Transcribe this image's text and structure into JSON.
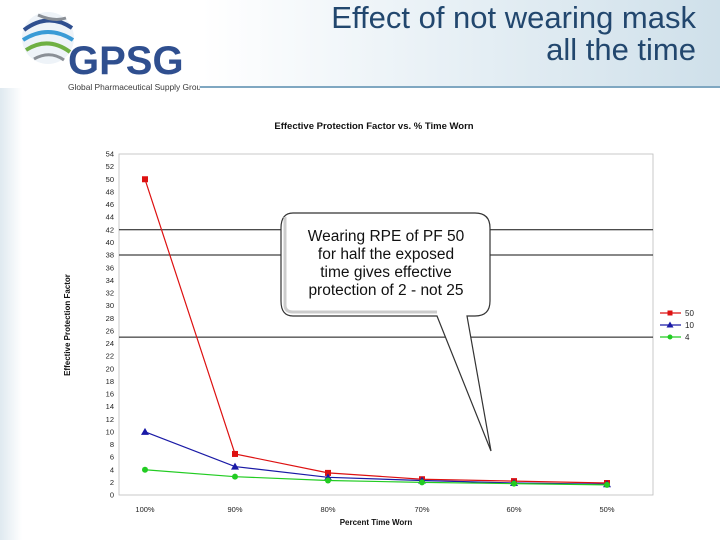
{
  "slide": {
    "title_line1": "Effect of not wearing mask",
    "title_line2": "all the time"
  },
  "logo": {
    "text": "GPSG",
    "subtitle": "Global Pharmaceutical Supply Group",
    "colors": [
      "#2f4f8f",
      "#6fb043",
      "#3a9bd6",
      "#8a8f96"
    ]
  },
  "callout": {
    "lines": [
      "Wearing RPE of PF 50",
      "for half the exposed",
      "time gives effective",
      "protection of 2 - not 25"
    ]
  },
  "chart_data": {
    "type": "line",
    "title": "Effective Protection Factor vs. % Time Worn",
    "xlabel": "Percent Time Worn",
    "ylabel": "Effective Protection Factor",
    "categories": [
      "100%",
      "90%",
      "80%",
      "70%",
      "60%",
      "50%"
    ],
    "ylim": [
      0,
      54
    ],
    "yticks": [
      0,
      2,
      4,
      6,
      8,
      10,
      12,
      14,
      16,
      18,
      20,
      22,
      24,
      26,
      28,
      30,
      32,
      34,
      36,
      38,
      40,
      42,
      44,
      46,
      48,
      50,
      52,
      54
    ],
    "reference_lines": [
      25,
      38,
      42
    ],
    "legend_position": "right",
    "series": [
      {
        "name": "50",
        "color": "#dd1111",
        "marker": "square",
        "values": [
          50,
          6.5,
          3.5,
          2.5,
          2.2,
          1.9
        ]
      },
      {
        "name": "10",
        "color": "#1a1aa6",
        "marker": "triangle",
        "values": [
          10,
          4.5,
          2.8,
          2.3,
          1.9,
          1.7
        ]
      },
      {
        "name": "4",
        "color": "#22cc22",
        "marker": "circle",
        "values": [
          4,
          2.9,
          2.3,
          2.0,
          1.8,
          1.6
        ]
      }
    ]
  }
}
